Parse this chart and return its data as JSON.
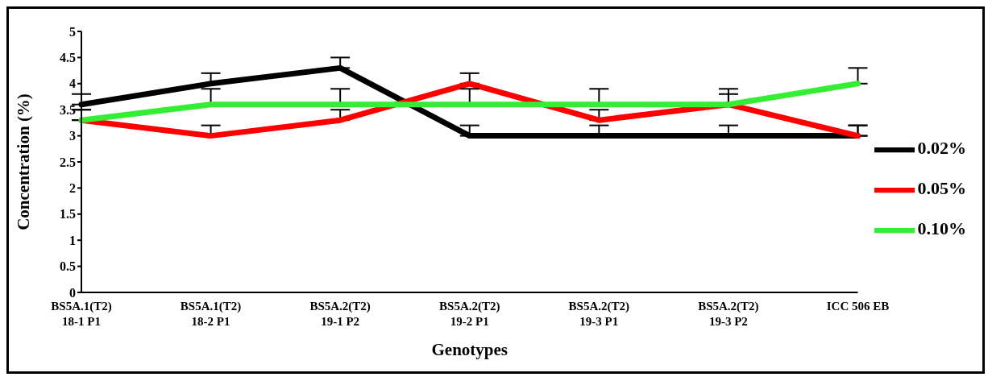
{
  "chart_data": {
    "type": "line",
    "xlabel": "Genotypes",
    "ylabel": "Concentration (%)",
    "categories": [
      "BS5A.1(T2)\n18-1 P1",
      "BS5A.1(T2)\n18-2 P1",
      "BS5A.2(T2)\n19-1 P2",
      "BS5A.2(T2)\n19-2 P1",
      "BS5A.2(T2)\n19-3 P1",
      "BS5A.2(T2)\n19-3 P2",
      "ICC 506 EB"
    ],
    "series": [
      {
        "name": "0.02%",
        "color": "#000000",
        "values": [
          3.6,
          4.0,
          4.3,
          3.0,
          3.0,
          3.0,
          3.0
        ],
        "errors": [
          [
            3.6,
            3.8
          ],
          [
            4.0,
            4.2
          ],
          [
            4.3,
            4.5
          ],
          [
            3.0,
            3.2
          ],
          [
            3.0,
            3.2
          ],
          [
            3.0,
            3.2
          ],
          [
            3.0,
            3.2
          ]
        ]
      },
      {
        "name": "0.05%",
        "color": "#ff0000",
        "values": [
          3.3,
          3.0,
          3.3,
          4.0,
          3.3,
          3.6,
          3.0
        ],
        "errors": [
          [
            3.3,
            3.5
          ],
          [
            3.0,
            3.2
          ],
          [
            3.3,
            3.5
          ],
          [
            4.0,
            4.2
          ],
          [
            3.3,
            3.5
          ],
          [
            3.6,
            3.9
          ],
          [
            3.0,
            3.2
          ]
        ]
      },
      {
        "name": "0.10%",
        "color": "#33ee33",
        "values": [
          3.3,
          3.6,
          3.6,
          3.6,
          3.6,
          3.6,
          4.0
        ],
        "errors": [
          [
            3.3,
            3.5
          ],
          [
            3.6,
            3.9
          ],
          [
            3.6,
            3.9
          ],
          [
            3.6,
            3.9
          ],
          [
            3.6,
            3.9
          ],
          [
            3.6,
            3.8
          ],
          [
            4.0,
            4.3
          ]
        ]
      }
    ],
    "ylim": [
      0,
      5
    ],
    "yticks": [
      0,
      0.5,
      1,
      1.5,
      2,
      2.5,
      3,
      3.5,
      4,
      4.5,
      5
    ],
    "grid": false,
    "legend": "right",
    "marker": "none",
    "line_style": "solid"
  }
}
